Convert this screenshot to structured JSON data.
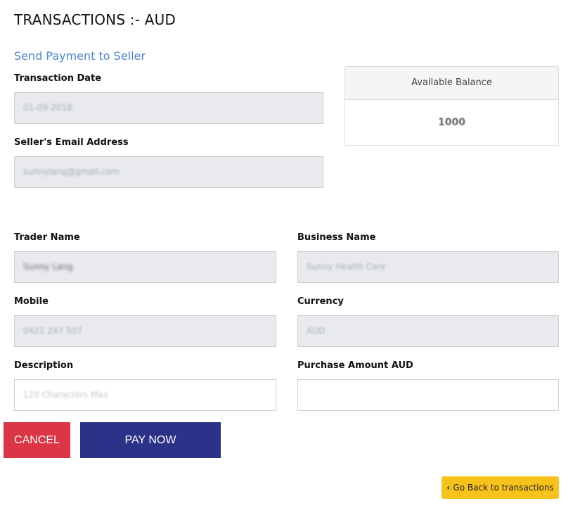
{
  "page_title": "TRANSACTIONS :- AUD",
  "subtitle": "Send Payment to Seller",
  "form": {
    "transaction_date": {
      "label": "Transaction Date",
      "value": "01-09-2018"
    },
    "seller_email": {
      "label": "Seller's Email Address",
      "value": "sunnylang@gmail.com"
    },
    "trader_name": {
      "label": "Trader Name",
      "value": "Sunny Lang"
    },
    "business_name": {
      "label": "Business Name",
      "value": "Sunny Health Care"
    },
    "mobile": {
      "label": "Mobile",
      "value": "0421 247 507"
    },
    "currency": {
      "label": "Currency",
      "value": "AUD"
    },
    "description": {
      "label": "Description",
      "placeholder": "120 Characters Max",
      "value": ""
    },
    "purchase_amount": {
      "label": "Purchase Amount AUD",
      "value": ""
    }
  },
  "balance": {
    "label": "Available Balance",
    "value": "1000"
  },
  "buttons": {
    "cancel": "CANCEL",
    "pay_now": "PAY NOW",
    "back": "Go Back to transactions",
    "back_icon": "chevron-left-icon"
  },
  "colors": {
    "cancel": "#dc3545",
    "pay_now": "#2b3287",
    "back": "#f7c21b",
    "subtitle": "#4a86d8"
  }
}
